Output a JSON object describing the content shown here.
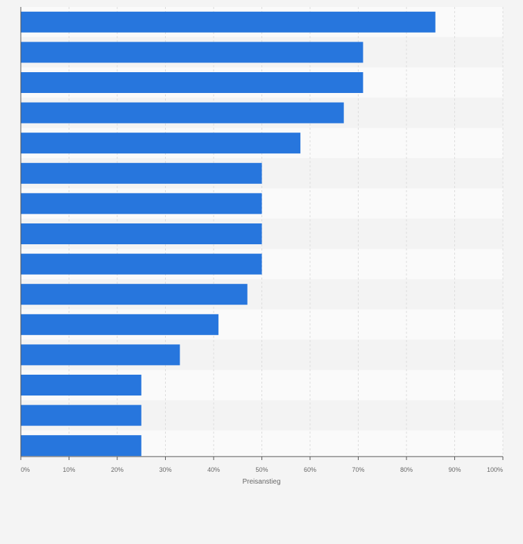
{
  "chart_data": {
    "type": "bar",
    "orientation": "horizontal",
    "categories": [
      "",
      "",
      "",
      "",
      "",
      "",
      "",
      "",
      "",
      "",
      "",
      "",
      "",
      "",
      ""
    ],
    "values": [
      86,
      71,
      71,
      67,
      58,
      50,
      50,
      50,
      50,
      47,
      41,
      33,
      25,
      25,
      25
    ],
    "xlabel": "Preisanstieg",
    "ylabel": "",
    "xlim": [
      0,
      100
    ],
    "x_ticks": [
      "0%",
      "10%",
      "20%",
      "30%",
      "40%",
      "50%",
      "60%",
      "70%",
      "80%",
      "90%",
      "100%"
    ],
    "grid": "vertical dashed",
    "colors": {
      "bar": "#2776dd",
      "band_light": "#fafafa",
      "band_dark": "#f3f3f3",
      "background": "#f4f4f4",
      "grid": "#dcdcdc",
      "axis": "#555555",
      "tick_text": "#666666"
    }
  }
}
